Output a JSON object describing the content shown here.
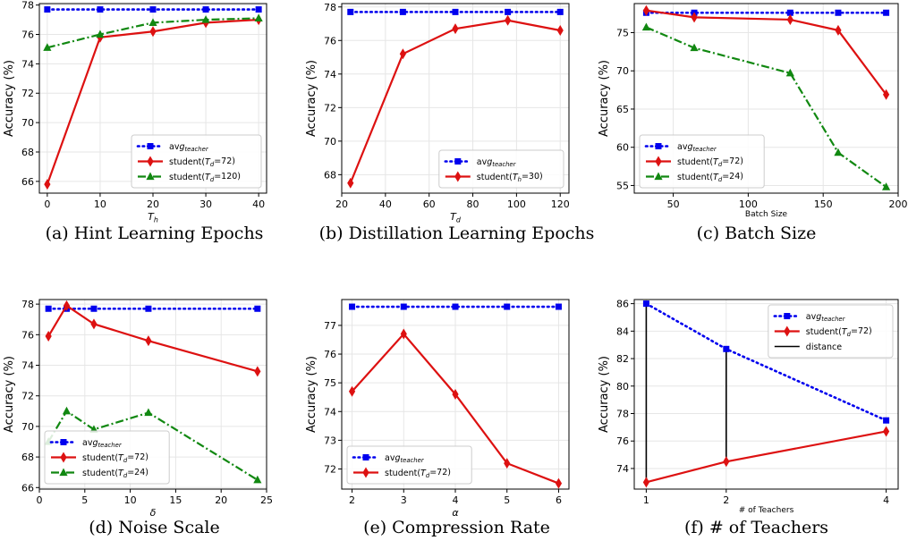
{
  "colors": {
    "teacher": "#0000ee",
    "student": "#dd1111",
    "student2": "#118811",
    "distance": "#000000",
    "grid": "#e6e6e6"
  },
  "chart_data": [
    {
      "id": "a",
      "type": "line",
      "caption": "(a) Hint Learning Epochs",
      "xlabel": "T_h",
      "ylabel": "Accuracy (%)",
      "xlim": [
        -1.5,
        41.5
      ],
      "ylim": [
        65.2,
        78.1
      ],
      "xticks": [
        0,
        10,
        20,
        30,
        40
      ],
      "yticks": [
        66,
        68,
        70,
        72,
        74,
        76,
        78
      ],
      "grid": true,
      "legend": "bottom-right",
      "series": [
        {
          "name": "avg_teacher",
          "color": "teacher",
          "style": "dotted",
          "marker": "square",
          "x": [
            0,
            10,
            20,
            30,
            40
          ],
          "y": [
            77.7,
            77.7,
            77.7,
            77.7,
            77.7
          ]
        },
        {
          "name": "student(T_d=72)",
          "color": "student",
          "style": "solid",
          "marker": "diamond",
          "x": [
            0,
            10,
            20,
            30,
            40
          ],
          "y": [
            65.8,
            75.8,
            76.2,
            76.8,
            77.0
          ]
        },
        {
          "name": "student(T_d=120)",
          "color": "student2",
          "style": "dashdot",
          "marker": "triangle",
          "x": [
            0,
            10,
            20,
            30,
            40
          ],
          "y": [
            75.1,
            76.0,
            76.8,
            77.0,
            77.1
          ]
        }
      ]
    },
    {
      "id": "b",
      "type": "line",
      "caption": "(b) Distillation Learning Epochs",
      "xlabel": "T_d",
      "ylabel": "Accuracy (%)",
      "xlim": [
        20,
        124
      ],
      "ylim": [
        66.9,
        78.2
      ],
      "xticks": [
        20,
        40,
        60,
        80,
        100,
        120
      ],
      "yticks": [
        68,
        70,
        72,
        74,
        76,
        78
      ],
      "grid": true,
      "legend": "bottom-right",
      "series": [
        {
          "name": "avg_teacher",
          "color": "teacher",
          "style": "dotted",
          "marker": "square",
          "x": [
            24,
            48,
            72,
            96,
            120
          ],
          "y": [
            77.7,
            77.7,
            77.7,
            77.7,
            77.7
          ]
        },
        {
          "name": "student(T_h=30)",
          "color": "student",
          "style": "solid",
          "marker": "diamond",
          "x": [
            24,
            48,
            72,
            96,
            120
          ],
          "y": [
            67.5,
            75.2,
            76.7,
            77.2,
            76.6
          ]
        }
      ]
    },
    {
      "id": "c",
      "type": "line",
      "caption": "(c) Batch Size",
      "xlabel": "Batch Size",
      "ylabel": "Accuracy (%)",
      "xlim": [
        24,
        200
      ],
      "ylim": [
        54,
        78.8
      ],
      "xticks": [
        50,
        100,
        150,
        200
      ],
      "yticks": [
        55,
        60,
        65,
        70,
        75
      ],
      "grid": true,
      "legend": "bottom-left",
      "series": [
        {
          "name": "avg_teacher",
          "color": "teacher",
          "style": "dotted",
          "marker": "square",
          "x": [
            32,
            64,
            128,
            160,
            192
          ],
          "y": [
            77.6,
            77.6,
            77.6,
            77.6,
            77.6
          ]
        },
        {
          "name": "student(T_d=72)",
          "color": "student",
          "style": "solid",
          "marker": "diamond",
          "x": [
            32,
            64,
            128,
            160,
            192
          ],
          "y": [
            77.9,
            77.0,
            76.7,
            75.3,
            66.9
          ]
        },
        {
          "name": "student(T_d=24)",
          "color": "student2",
          "style": "dashdot",
          "marker": "triangle",
          "x": [
            32,
            64,
            128,
            160,
            192
          ],
          "y": [
            75.7,
            73.0,
            69.7,
            59.3,
            54.8
          ]
        }
      ]
    },
    {
      "id": "d",
      "type": "line",
      "caption": "(d) Noise Scale",
      "xlabel": "δ",
      "ylabel": "Accuracy (%)",
      "xlim": [
        0,
        25
      ],
      "ylim": [
        65.9,
        78.3
      ],
      "xticks": [
        0,
        5,
        10,
        15,
        20,
        25
      ],
      "yticks": [
        66,
        68,
        70,
        72,
        74,
        76,
        78
      ],
      "grid": true,
      "legend": "bottom-left",
      "series": [
        {
          "name": "avg_teacher",
          "color": "teacher",
          "style": "dotted",
          "marker": "square",
          "x": [
            1,
            3,
            6,
            12,
            24
          ],
          "y": [
            77.7,
            77.7,
            77.7,
            77.7,
            77.7
          ]
        },
        {
          "name": "student(T_d=72)",
          "color": "student",
          "style": "solid",
          "marker": "diamond",
          "x": [
            1,
            3,
            6,
            12,
            24
          ],
          "y": [
            75.9,
            77.9,
            76.7,
            75.6,
            73.6
          ]
        },
        {
          "name": "student(T_d=24)",
          "color": "student2",
          "style": "dashdot",
          "marker": "triangle",
          "x": [
            1,
            3,
            6,
            12,
            24
          ],
          "y": [
            69.0,
            71.0,
            69.8,
            70.9,
            66.5
          ]
        }
      ]
    },
    {
      "id": "e",
      "type": "line",
      "caption": "(e) Compression Rate",
      "xlabel": "α",
      "ylabel": "Accuracy (%)",
      "xlim": [
        1.8,
        6.2
      ],
      "ylim": [
        71.3,
        77.9
      ],
      "xticks": [
        2,
        3,
        4,
        5,
        6
      ],
      "yticks": [
        72,
        73,
        74,
        75,
        76,
        77
      ],
      "grid": true,
      "legend": "bottom-left",
      "series": [
        {
          "name": "avg_teacher",
          "color": "teacher",
          "style": "dotted",
          "marker": "square",
          "x": [
            2,
            3,
            4,
            5,
            6
          ],
          "y": [
            77.65,
            77.65,
            77.65,
            77.65,
            77.65
          ]
        },
        {
          "name": "student(T_d=72)",
          "color": "student",
          "style": "solid",
          "marker": "diamond",
          "x": [
            2,
            3,
            4,
            5,
            6
          ],
          "y": [
            74.7,
            76.7,
            74.6,
            72.2,
            71.5
          ]
        }
      ]
    },
    {
      "id": "f",
      "type": "line",
      "caption": "(f) # of Teachers",
      "xlabel": "# of Teachers",
      "ylabel": "Accuracy (%)",
      "xlim": [
        0.85,
        4.15
      ],
      "ylim": [
        72.5,
        86.3
      ],
      "xticks": [
        1,
        2,
        4
      ],
      "yticks": [
        74,
        76,
        78,
        80,
        82,
        84,
        86
      ],
      "grid": true,
      "legend": "top-right",
      "series": [
        {
          "name": "avg_teacher",
          "color": "teacher",
          "style": "dotted",
          "marker": "square",
          "x": [
            1,
            2,
            4
          ],
          "y": [
            86.0,
            82.7,
            77.5
          ]
        },
        {
          "name": "student(T_d=72)",
          "color": "student",
          "style": "solid",
          "marker": "diamond",
          "x": [
            1,
            2,
            4
          ],
          "y": [
            73.0,
            74.5,
            76.7
          ]
        }
      ],
      "distance_label": "distance",
      "distance_x": [
        1,
        2
      ]
    }
  ]
}
